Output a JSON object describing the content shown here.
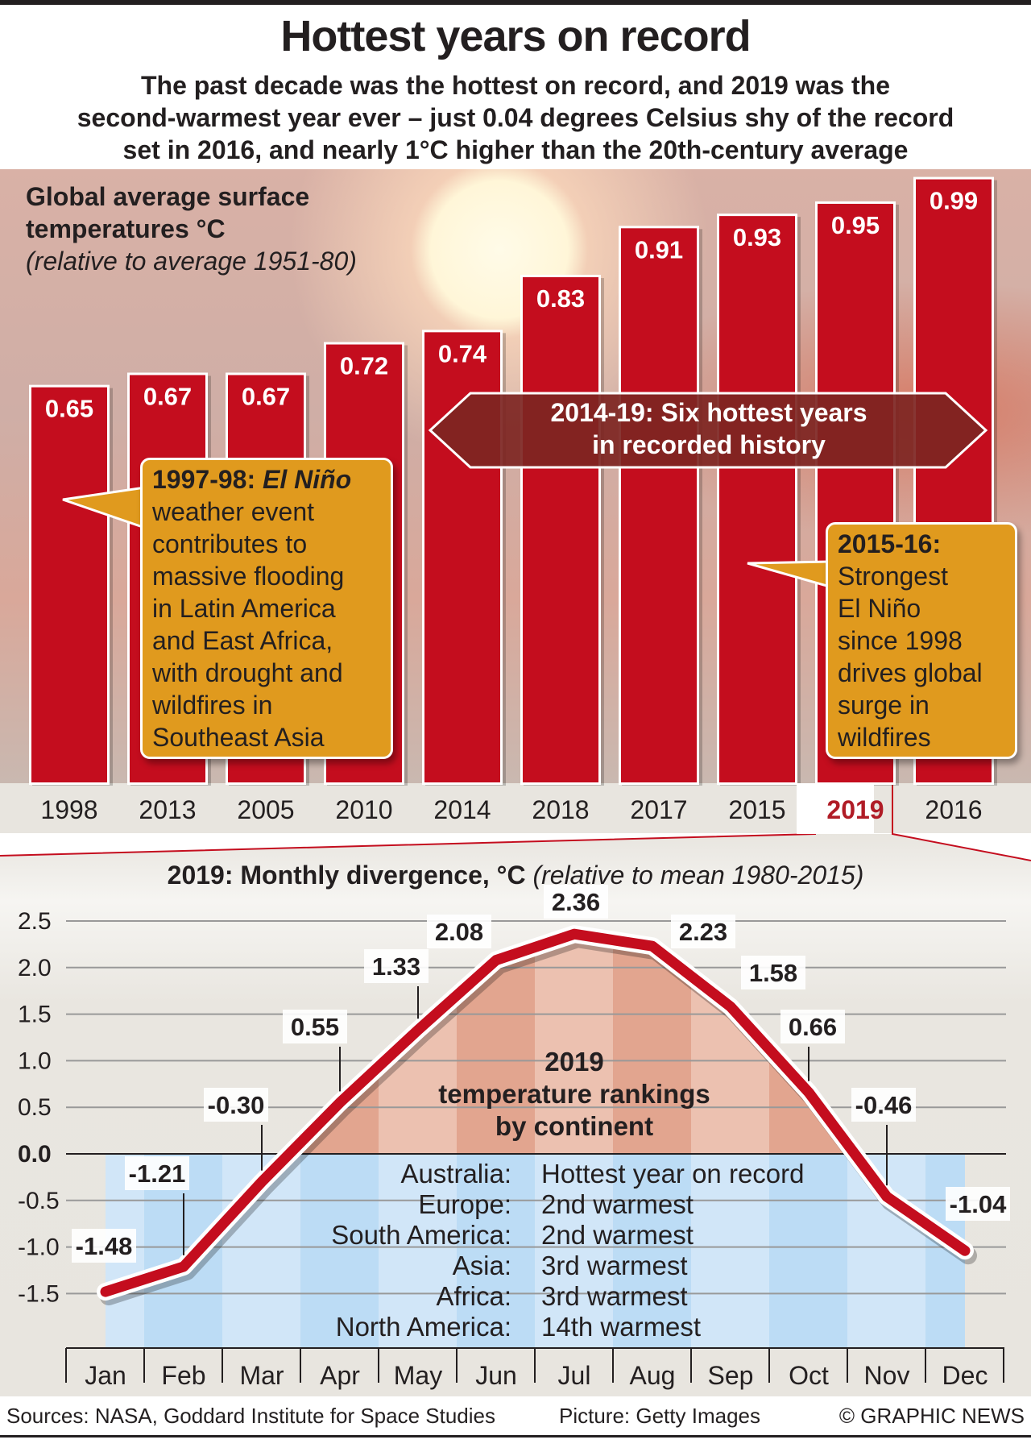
{
  "title": "Hottest years on record",
  "subtitle": [
    "The past decade was the hottest on record, and 2019 was the",
    "second-warmest year ever – just 0.04 degrees Celsius shy of the record",
    "set in 2016, and nearly 1°C higher than the 20th-century average"
  ],
  "colors": {
    "bar": "#c40d1e",
    "callout": "#e09a1e",
    "banner": "#7d2522",
    "highlight": "#b01c26",
    "line": "#c40d1e",
    "above_zero": "#e2a58f",
    "below_zero": "#bcdcf5"
  },
  "chart_data": [
    {
      "type": "bar",
      "title": "Global average surface temperatures °C",
      "subtitle": "(relative to average 1951-80)",
      "categories": [
        "1998",
        "2013",
        "2005",
        "2010",
        "2014",
        "2018",
        "2017",
        "2015",
        "2019",
        "2016"
      ],
      "values": [
        0.65,
        0.67,
        0.67,
        0.72,
        0.74,
        0.83,
        0.91,
        0.93,
        0.95,
        0.99
      ],
      "value_labels": [
        "0.65",
        "0.67",
        "0.67",
        "0.72",
        "0.74",
        "0.83",
        "0.91",
        "0.93",
        "0.95",
        "0.99"
      ],
      "highlight": "2019",
      "annotations": {
        "banner": [
          "2014-19: Six hottest years",
          "in recorded history"
        ],
        "callout_1998_head": "1997-98:",
        "callout_1998_italic": "El Niño",
        "callout_1998_body": [
          "weather event",
          "contributes to",
          "massive flooding",
          "in Latin America",
          "and East Africa,",
          "with drought and",
          "wildfires in",
          "Southeast Asia"
        ],
        "callout_2016_head": "2015-16:",
        "callout_2016_body": [
          "Strongest",
          "El Niño",
          "since 1998",
          "drives global",
          "surge in",
          "wildfires"
        ]
      }
    },
    {
      "type": "line",
      "title": "2019: Monthly divergence, °C",
      "subtitle": "(relative to mean 1980-2015)",
      "categories": [
        "Jan",
        "Feb",
        "Mar",
        "Apr",
        "May",
        "Jun",
        "Jul",
        "Aug",
        "Sep",
        "Oct",
        "Nov",
        "Dec"
      ],
      "values": [
        -1.48,
        -1.21,
        -0.3,
        0.55,
        1.33,
        2.08,
        2.36,
        2.23,
        1.58,
        0.66,
        -0.46,
        -1.04
      ],
      "value_labels": [
        "-1.48",
        "-1.21",
        "-0.30",
        "0.55",
        "1.33",
        "2.08",
        "2.36",
        "2.23",
        "1.58",
        "0.66",
        "-0.46",
        "-1.04"
      ],
      "yticks": [
        "2.5",
        "2.0",
        "1.5",
        "1.0",
        "0.5",
        "0.0",
        "-0.5",
        "-1.0",
        "-1.5"
      ],
      "ylim": [
        -1.5,
        2.5
      ],
      "grid": true
    }
  ],
  "rankings": {
    "title": [
      "2019",
      "temperature rankings",
      "by continent"
    ],
    "rows": [
      {
        "continent": "Australia:",
        "rank": "Hottest year on record"
      },
      {
        "continent": "Europe:",
        "rank": "2nd warmest"
      },
      {
        "continent": "South America:",
        "rank": "2nd warmest"
      },
      {
        "continent": "Asia:",
        "rank": "3rd warmest"
      },
      {
        "continent": "Africa:",
        "rank": "3rd warmest"
      },
      {
        "continent": "North America:",
        "rank": "14th warmest"
      }
    ]
  },
  "footer": {
    "sources": "Sources: NASA, Goddard Institute for Space Studies",
    "picture": "Picture: Getty Images",
    "credit": "© GRAPHIC NEWS"
  }
}
